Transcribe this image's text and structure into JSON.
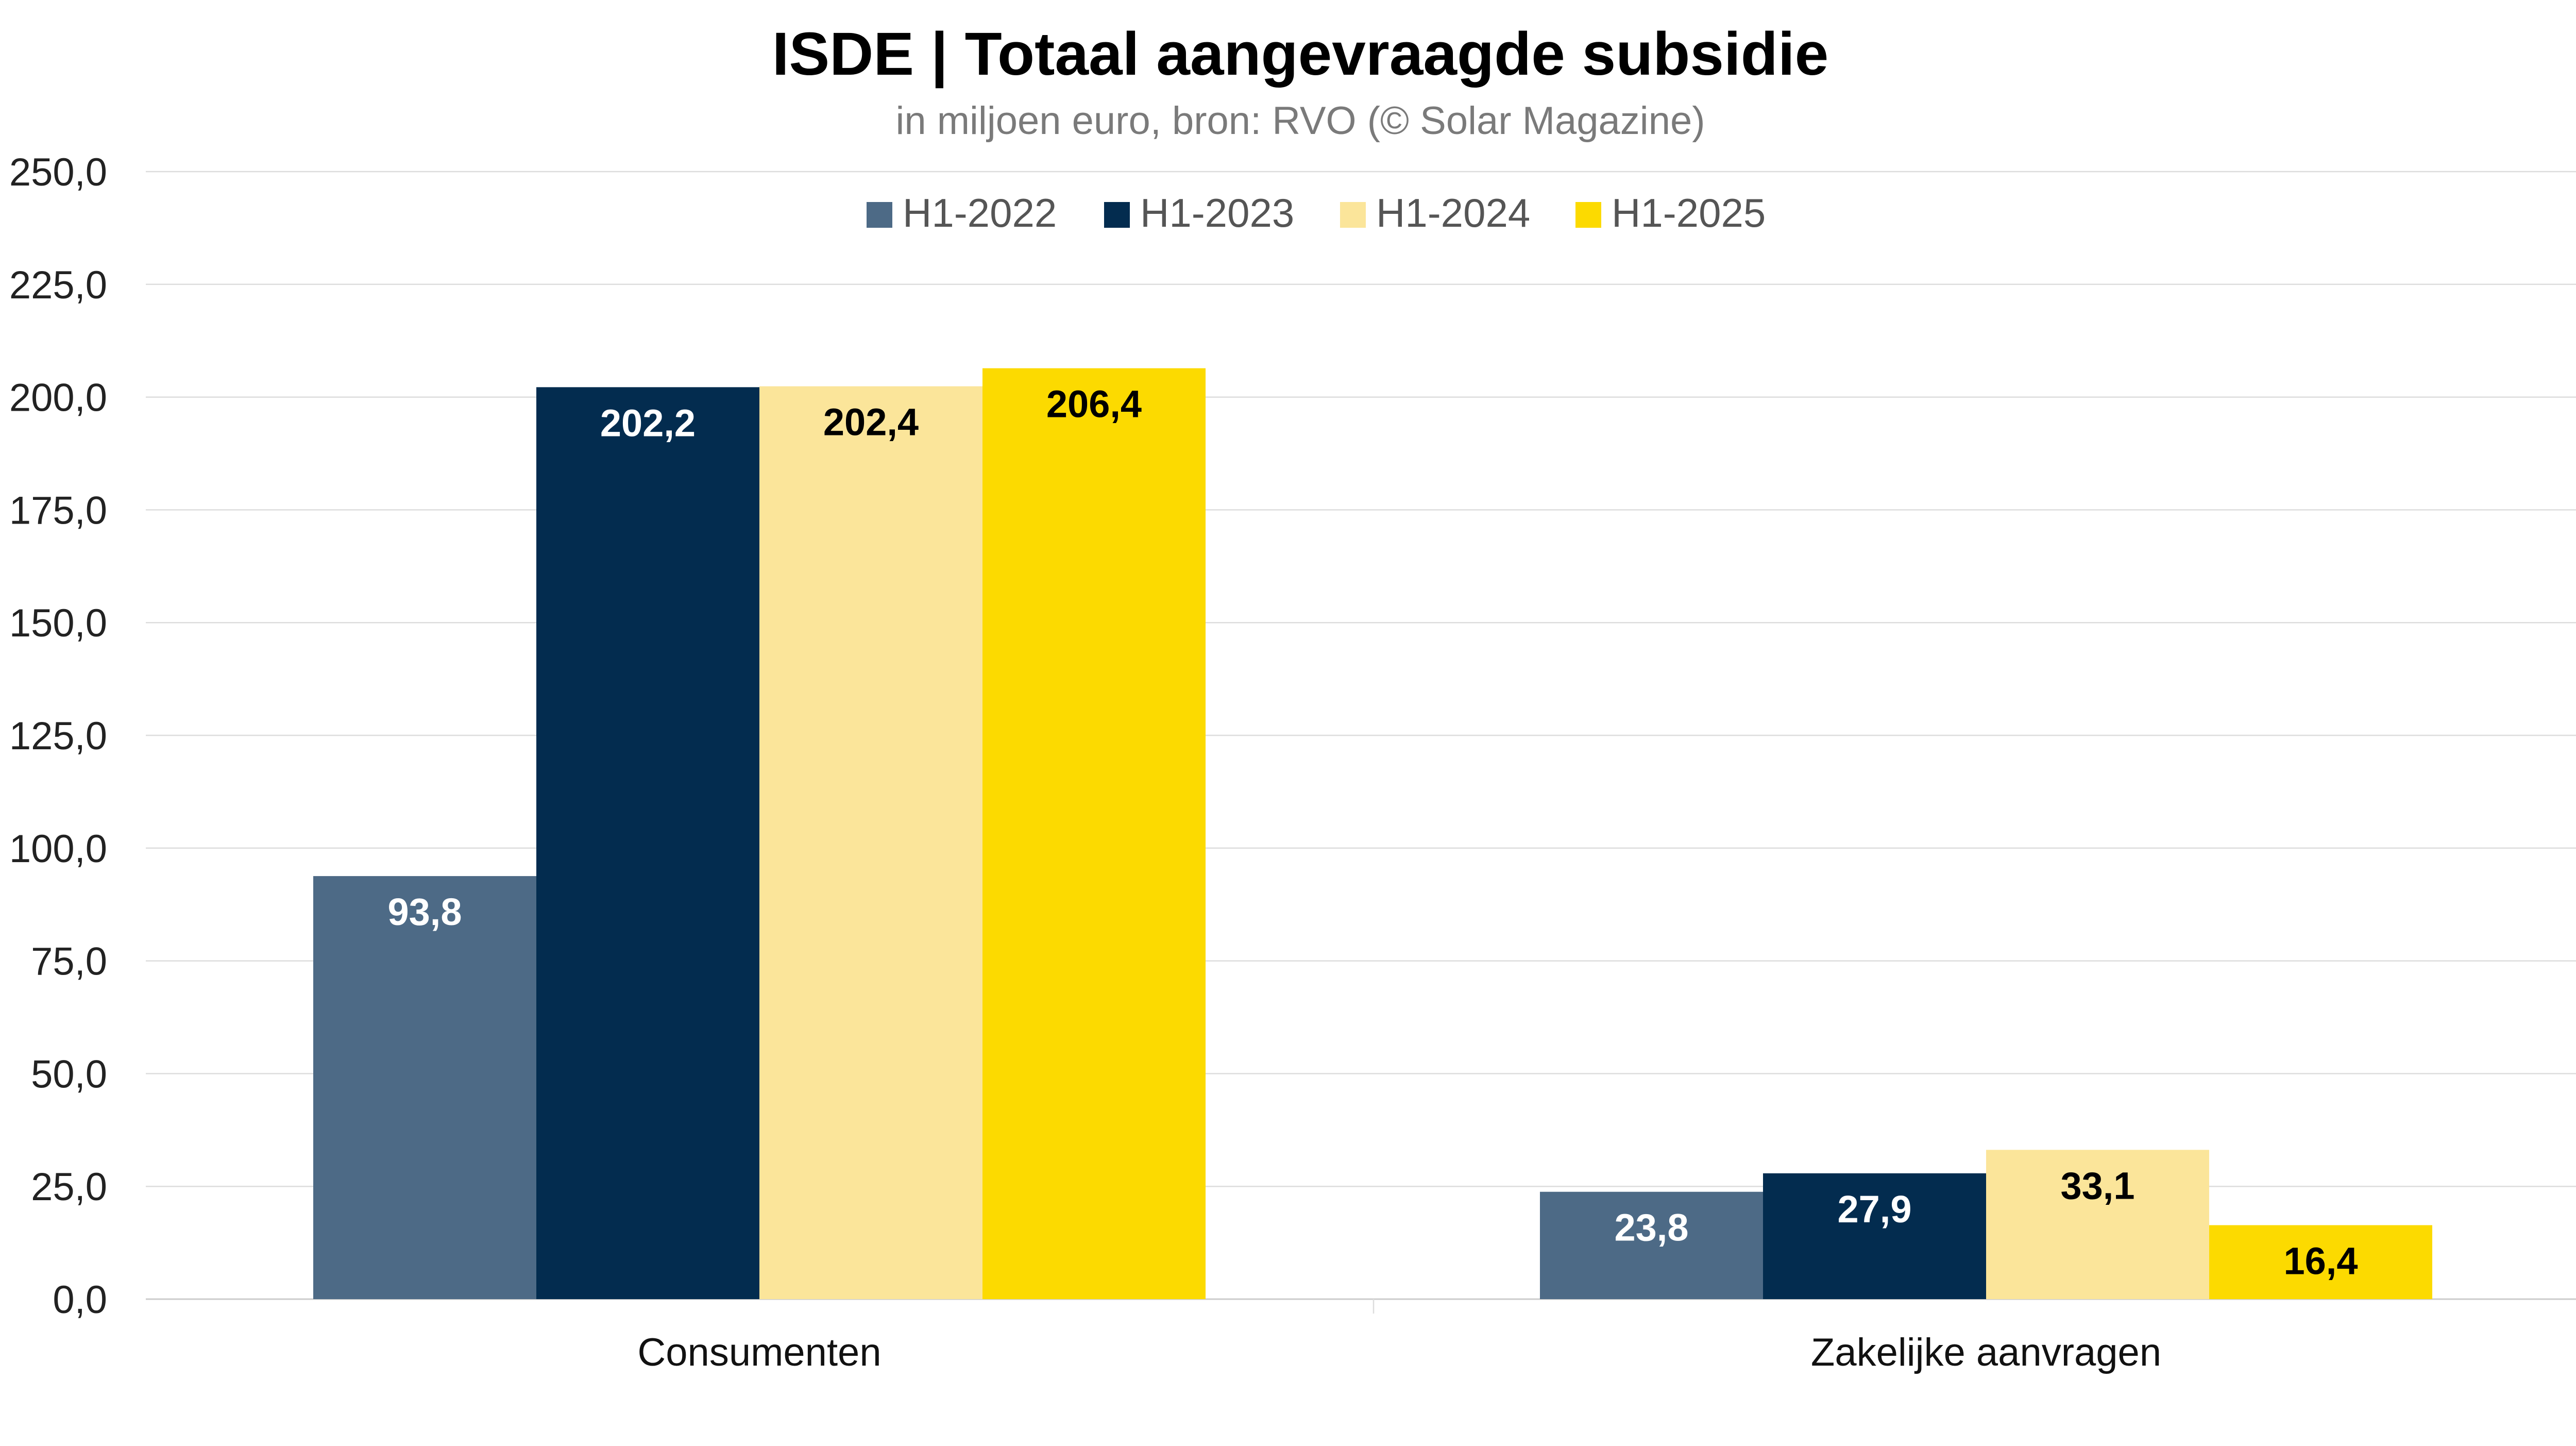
{
  "chart_data": {
    "type": "bar",
    "title": "ISDE | Totaal aangevraagde subsidie",
    "subtitle": "in miljoen euro, bron: RVO (© Solar Magazine)",
    "xlabel": "",
    "ylabel": "",
    "ylim": [
      0,
      250
    ],
    "y_ticks": [
      "0,0",
      "25,0",
      "50,0",
      "75,0",
      "100,0",
      "125,0",
      "150,0",
      "175,0",
      "200,0",
      "225,0",
      "250,0"
    ],
    "grid": true,
    "legend_position": "top-center",
    "categories": [
      "Consumenten",
      "Zakelijke aanvragen"
    ],
    "series": [
      {
        "name": "H1-2022",
        "color": "#4d6a86",
        "label_color": "#ffffff",
        "values": [
          93.8,
          23.8
        ],
        "labels": [
          "93,8",
          "23,8"
        ]
      },
      {
        "name": "H1-2023",
        "color": "#032c4f",
        "label_color": "#ffffff",
        "values": [
          202.2,
          27.9
        ],
        "labels": [
          "202,2",
          "27,9"
        ]
      },
      {
        "name": "H1-2024",
        "color": "#fbe59a",
        "label_color": "#000000",
        "values": [
          202.4,
          33.1
        ],
        "labels": [
          "202,4",
          "33,1"
        ]
      },
      {
        "name": "H1-2025",
        "color": "#fcda00",
        "label_color": "#000000",
        "values": [
          206.4,
          16.4
        ],
        "labels": [
          "206,4",
          "16,4"
        ]
      }
    ]
  }
}
